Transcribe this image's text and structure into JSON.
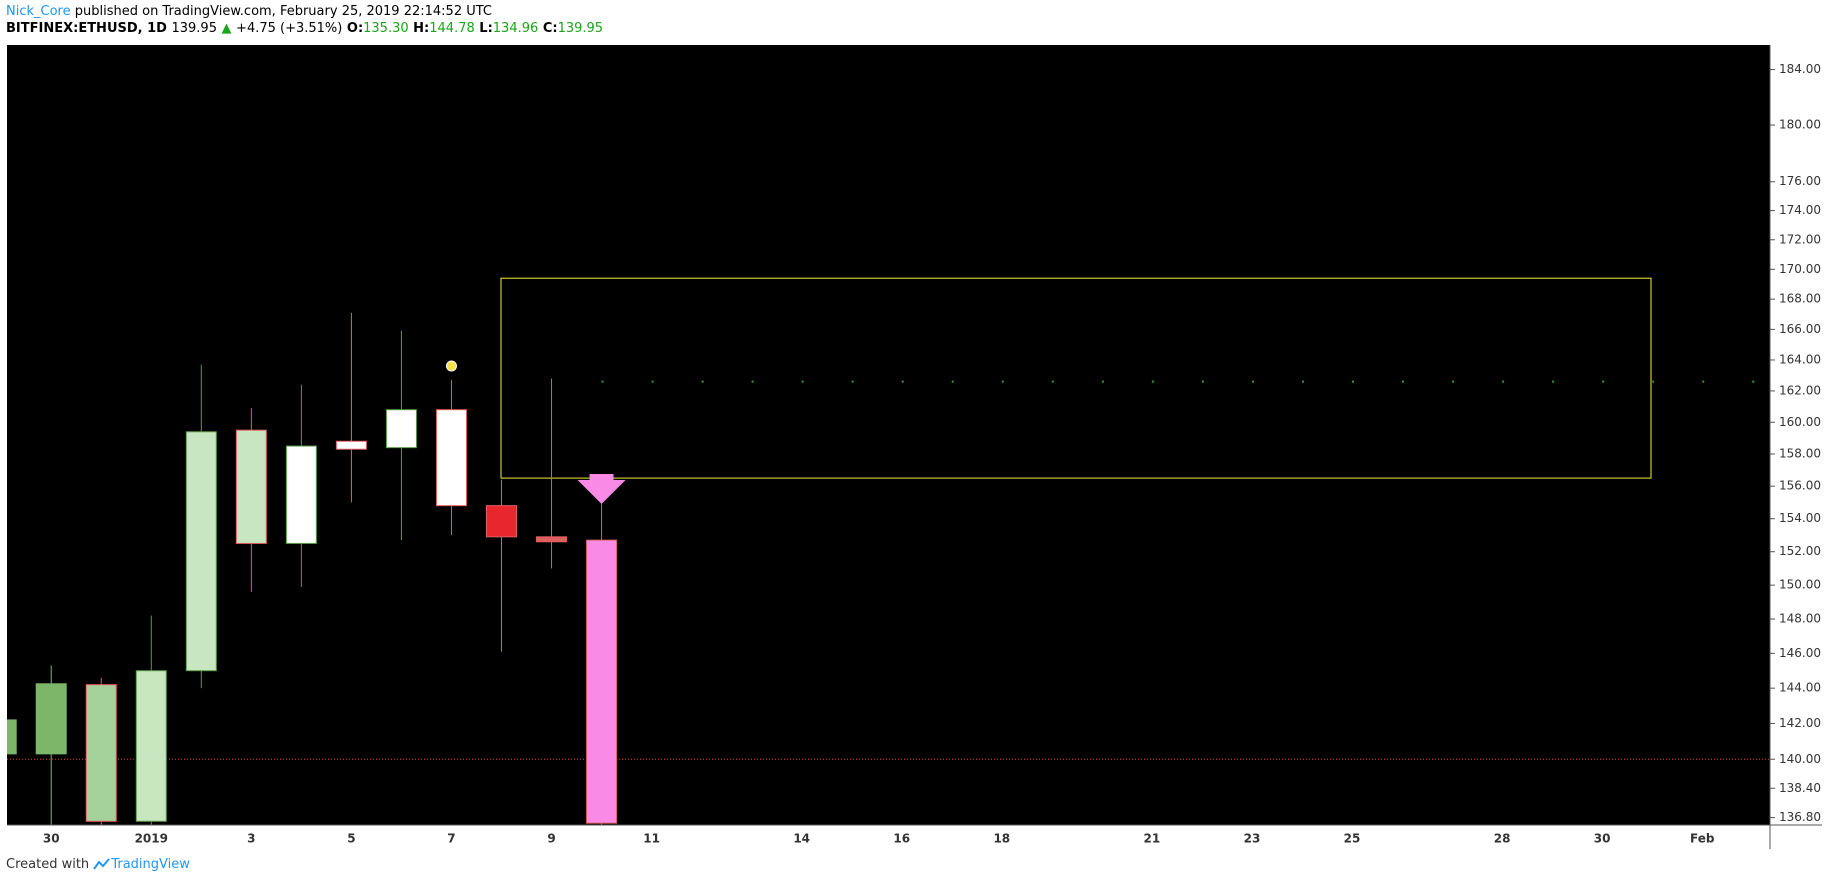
{
  "header": {
    "author": "Nick_Core",
    "published": "published on TradingView.com, February 25, 2019 22:14:52 UTC",
    "symbol": "BITFINEX:ETHUSD, 1D",
    "last": "139.95",
    "arrow": "▲",
    "change": "+4.75 (+3.51%)",
    "o_label": "O:",
    "o": "135.30",
    "h_label": "H:",
    "h": "144.78",
    "l_label": "L:",
    "l": "134.96",
    "c_label": "C:",
    "c": "139.95"
  },
  "footer": {
    "created": "Created with",
    "brand": "TradingView"
  },
  "chart_data": {
    "type": "candlestick",
    "categories": [
      null,
      "30",
      null,
      "2019",
      null,
      "3",
      null,
      "5",
      null,
      "7",
      null,
      "9",
      null,
      "11",
      null,
      null,
      "14",
      null,
      "16",
      null,
      "18",
      null,
      null,
      "21",
      null,
      "23",
      null,
      "25",
      null,
      null,
      "28",
      null,
      "30",
      null,
      "Feb",
      null
    ],
    "open": [
      140.3,
      140.3,
      144.2,
      136.6,
      145.0,
      159.5,
      152.5,
      158.3,
      158.4,
      160.8,
      154.8,
      152.9,
      152.7,
      null,
      null,
      null,
      null,
      null,
      null,
      null,
      null,
      null,
      null,
      null,
      null,
      null,
      null,
      null,
      null,
      null,
      null,
      null,
      null,
      null,
      null,
      null
    ],
    "high": [
      142.6,
      145.3,
      144.6,
      148.2,
      163.7,
      160.9,
      162.4,
      167.1,
      165.9,
      162.7,
      156.4,
      162.8,
      154.9,
      null,
      null,
      null,
      null,
      null,
      null,
      null,
      null,
      null,
      null,
      null,
      null,
      null,
      null,
      null,
      null,
      null,
      null,
      null,
      null,
      null,
      null,
      null
    ],
    "low": [
      139.8,
      136.0,
      136.0,
      136.0,
      144.0,
      149.6,
      149.9,
      155.0,
      152.7,
      153.0,
      146.1,
      151.0,
      136.0,
      null,
      null,
      null,
      null,
      null,
      null,
      null,
      null,
      null,
      null,
      null,
      null,
      null,
      null,
      null,
      null,
      null,
      null,
      null,
      null,
      null,
      null,
      null
    ],
    "close": [
      142.2,
      144.25,
      136.6,
      145.0,
      159.4,
      152.5,
      158.5,
      158.8,
      160.8,
      154.8,
      152.9,
      152.6,
      136.5,
      null,
      null,
      null,
      null,
      null,
      null,
      null,
      null,
      null,
      null,
      null,
      null,
      null,
      null,
      null,
      null,
      null,
      null,
      null,
      null,
      null,
      null,
      null
    ],
    "fill_colors": [
      "#7cb668",
      "#7cb668",
      "#a5d19a",
      "#c8e6c0",
      "#c8e6c0",
      "#c8e6c0",
      "#ffffff",
      "#ffffff",
      "#ffffff",
      "#ffffff",
      "#e8262e",
      "#e06060",
      "#f98ae6",
      null,
      null,
      null,
      null,
      null,
      null,
      null,
      null,
      null,
      null,
      null,
      null,
      null,
      null,
      null,
      null,
      null,
      null,
      null,
      null,
      null,
      null,
      null
    ],
    "border_colors": [
      "#7cb668",
      "#7cb668",
      "#e06060",
      "#5a9a4a",
      "#5a9a4a",
      "#e06060",
      "#5a9a4a",
      "#e06060",
      "#5a9a4a",
      "#e06060",
      "#e06060",
      "#e06060",
      "#e06060",
      null,
      null,
      null,
      null,
      null,
      null,
      null,
      null,
      null,
      null,
      null,
      null,
      null,
      null,
      null,
      null,
      null,
      null,
      null,
      null,
      null,
      null,
      null
    ],
    "ylim": [
      136.4,
      185.8
    ],
    "log_scale": true,
    "yticks": [
      {
        "value": 184,
        "label": "184.00"
      },
      {
        "value": 180,
        "label": "180.00"
      },
      {
        "value": 176,
        "label": "176.00"
      },
      {
        "value": 174,
        "label": "174.00"
      },
      {
        "value": 172,
        "label": "172.00"
      },
      {
        "value": 170,
        "label": "170.00"
      },
      {
        "value": 168,
        "label": "168.00"
      },
      {
        "value": 166,
        "label": "166.00"
      },
      {
        "value": 164,
        "label": "164.00"
      },
      {
        "value": 162,
        "label": "162.00"
      },
      {
        "value": 160,
        "label": "160.00"
      },
      {
        "value": 158,
        "label": "158.00"
      },
      {
        "value": 156,
        "label": "156.00"
      },
      {
        "value": 154,
        "label": "154.00"
      },
      {
        "value": 152,
        "label": "152.00"
      },
      {
        "value": 150,
        "label": "150.00"
      },
      {
        "value": 148,
        "label": "148.00"
      },
      {
        "value": 146,
        "label": "146.00"
      },
      {
        "value": 144,
        "label": "144.00"
      },
      {
        "value": 142,
        "label": "142.00"
      },
      {
        "value": 140,
        "label": "140.00"
      },
      {
        "value": 138.4,
        "label": "138.40"
      },
      {
        "value": 136.8,
        "label": "136.80"
      }
    ],
    "price_line": 140.0,
    "price_line_color": "#e53935",
    "level_line": 162.6,
    "level_line_color": "#2e9e2e",
    "zone": {
      "high": 169.4,
      "low": 156.5,
      "color": "#f5eb3b"
    },
    "background": "#000000"
  }
}
